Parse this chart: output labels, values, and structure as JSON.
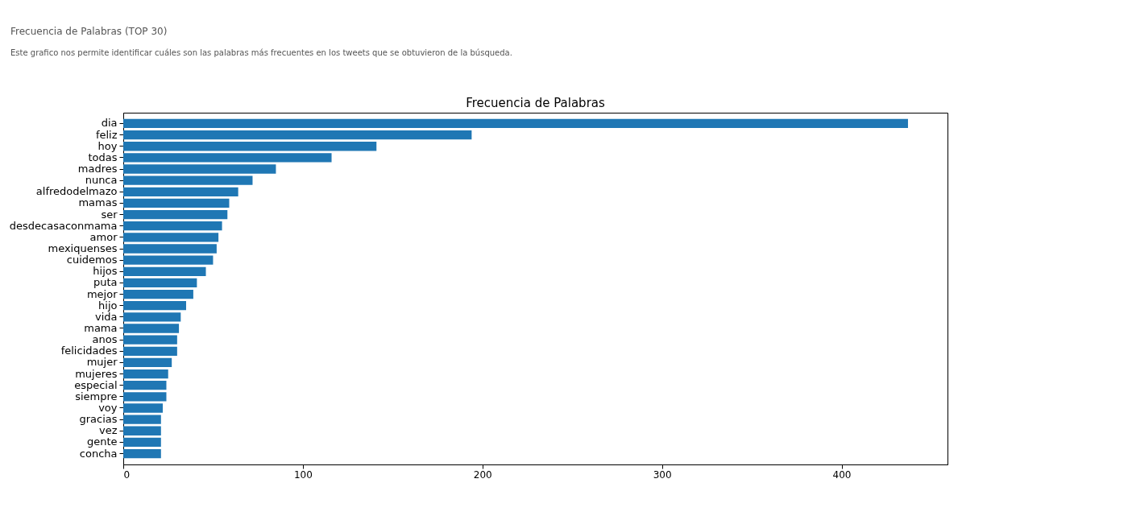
{
  "chart_data": {
    "type": "bar",
    "orientation": "horizontal",
    "title": "Frecuencia de Palabras",
    "annotations": [
      "Frecuencia de Palabras (TOP 30)",
      "Este grafico nos permite identificar cuáles son las palabras más frecuentes en los tweets que se obtuvieron de la búsqueda."
    ],
    "categories": [
      "dia",
      "feliz",
      "hoy",
      "todas",
      "madres",
      "nunca",
      "alfredodelmazo",
      "mamas",
      "ser",
      "desdecasaconmama",
      "amor",
      "mexiquenses",
      "cuidemos",
      "hijos",
      "puta",
      "mejor",
      "hijo",
      "vida",
      "mama",
      "anos",
      "felicidades",
      "mujer",
      "mujeres",
      "especial",
      "siempre",
      "voy",
      "gracias",
      "vez",
      "gente",
      "concha"
    ],
    "values": [
      437,
      194,
      141,
      116,
      85,
      72,
      64,
      59,
      58,
      55,
      53,
      52,
      50,
      46,
      41,
      39,
      35,
      32,
      31,
      30,
      30,
      27,
      25,
      24,
      24,
      22,
      21,
      21,
      21,
      21
    ],
    "color": "#1f77b4",
    "xlim": [
      0,
      459
    ],
    "xticks": [
      0,
      100,
      200,
      300,
      400
    ],
    "grid": false
  }
}
